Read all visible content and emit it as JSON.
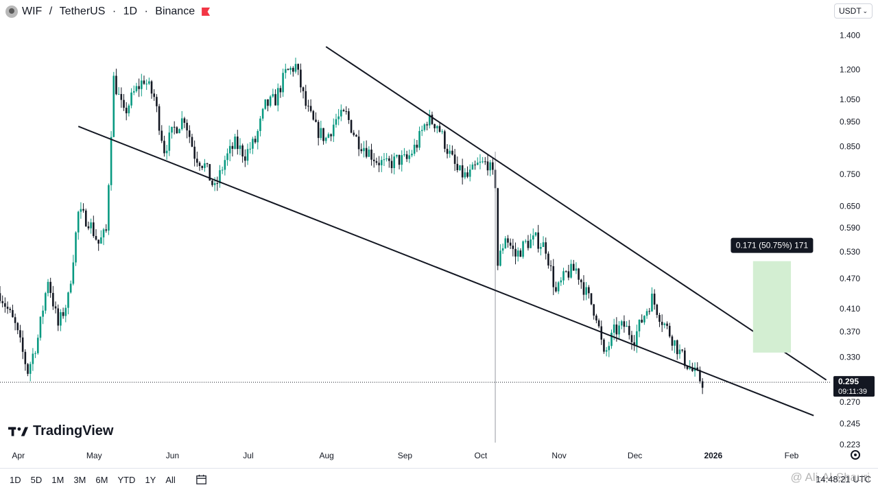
{
  "header": {
    "symbol": "WIF",
    "quote": "TetherUS",
    "interval": "1D",
    "exchange": "Binance",
    "title_sep": " / ",
    "dot": " · "
  },
  "currency_selector": {
    "value": "USDT"
  },
  "chart_data": {
    "type": "candlestick",
    "title": "WIF / TetherUS · 1D · Binance",
    "y_scale": "log",
    "ylim": [
      0.223,
      1.45
    ],
    "y_ticks": [
      "1.400",
      "1.200",
      "1.050",
      "0.950",
      "0.850",
      "0.750",
      "0.650",
      "0.590",
      "0.530",
      "0.470",
      "0.410",
      "0.370",
      "0.330",
      "0.270",
      "0.245",
      "0.223"
    ],
    "x_ticks": [
      "Apr",
      "May",
      "Jun",
      "Jul",
      "Aug",
      "Sep",
      "Oct",
      "Nov",
      "Dec",
      "2026",
      "Feb"
    ],
    "x_range": [
      "2025-03-28",
      "2026-02-20"
    ],
    "current_price": {
      "value": "0.295",
      "countdown": "09:11:39",
      "color": "#131722"
    },
    "up_color": "#089981",
    "down_color": "#131722",
    "price_path": [
      [
        "2025-03-28",
        0.44
      ],
      [
        "2025-04-03",
        0.38
      ],
      [
        "2025-04-08",
        0.31
      ],
      [
        "2025-04-12",
        0.36
      ],
      [
        "2025-04-16",
        0.47
      ],
      [
        "2025-04-20",
        0.38
      ],
      [
        "2025-04-24",
        0.43
      ],
      [
        "2025-04-28",
        0.63
      ],
      [
        "2025-05-02",
        0.61
      ],
      [
        "2025-05-06",
        0.55
      ],
      [
        "2025-05-09",
        0.58
      ],
      [
        "2025-05-12",
        1.15
      ],
      [
        "2025-05-16",
        0.98
      ],
      [
        "2025-05-20",
        1.08
      ],
      [
        "2025-05-24",
        1.15
      ],
      [
        "2025-05-28",
        1.06
      ],
      [
        "2025-06-01",
        0.84
      ],
      [
        "2025-06-05",
        0.92
      ],
      [
        "2025-06-09",
        0.97
      ],
      [
        "2025-06-13",
        0.82
      ],
      [
        "2025-06-17",
        0.78
      ],
      [
        "2025-06-21",
        0.7
      ],
      [
        "2025-06-25",
        0.8
      ],
      [
        "2025-06-29",
        0.86
      ],
      [
        "2025-07-03",
        0.82
      ],
      [
        "2025-07-07",
        0.87
      ],
      [
        "2025-07-11",
        1.02
      ],
      [
        "2025-07-15",
        1.05
      ],
      [
        "2025-07-19",
        1.18
      ],
      [
        "2025-07-23",
        1.22
      ],
      [
        "2025-07-27",
        1.02
      ],
      [
        "2025-07-31",
        0.92
      ],
      [
        "2025-08-04",
        0.88
      ],
      [
        "2025-08-08",
        0.96
      ],
      [
        "2025-08-12",
        0.98
      ],
      [
        "2025-08-16",
        0.88
      ],
      [
        "2025-08-20",
        0.84
      ],
      [
        "2025-08-24",
        0.8
      ],
      [
        "2025-08-28",
        0.78
      ],
      [
        "2025-09-01",
        0.8
      ],
      [
        "2025-09-05",
        0.8
      ],
      [
        "2025-09-09",
        0.86
      ],
      [
        "2025-09-13",
        0.96
      ],
      [
        "2025-09-17",
        0.94
      ],
      [
        "2025-09-21",
        0.84
      ],
      [
        "2025-09-25",
        0.76
      ],
      [
        "2025-09-29",
        0.74
      ],
      [
        "2025-10-03",
        0.78
      ],
      [
        "2025-10-07",
        0.79
      ],
      [
        "2025-10-10",
        0.72
      ],
      [
        "2025-10-11",
        0.5
      ],
      [
        "2025-10-14",
        0.57
      ],
      [
        "2025-10-18",
        0.52
      ],
      [
        "2025-10-22",
        0.55
      ],
      [
        "2025-10-26",
        0.56
      ],
      [
        "2025-10-30",
        0.54
      ],
      [
        "2025-11-03",
        0.44
      ],
      [
        "2025-11-07",
        0.48
      ],
      [
        "2025-11-11",
        0.49
      ],
      [
        "2025-11-15",
        0.44
      ],
      [
        "2025-11-19",
        0.4
      ],
      [
        "2025-11-22",
        0.33
      ],
      [
        "2025-11-26",
        0.37
      ],
      [
        "2025-11-30",
        0.38
      ],
      [
        "2025-12-04",
        0.36
      ],
      [
        "2025-12-08",
        0.4
      ],
      [
        "2025-12-11",
        0.43
      ],
      [
        "2025-12-15",
        0.39
      ],
      [
        "2025-12-19",
        0.36
      ],
      [
        "2025-12-23",
        0.33
      ],
      [
        "2025-12-27",
        0.31
      ],
      [
        "2025-12-31",
        0.295
      ]
    ],
    "annotations": {
      "upper_trendline": [
        [
          "2025-08-04",
          1.33
        ],
        [
          "2026-02-18",
          0.298
        ]
      ],
      "lower_trendline": [
        [
          "2025-04-28",
          0.93
        ],
        [
          "2026-02-13",
          0.254
        ]
      ],
      "vertical_marker": {
        "date": "2025-10-10",
        "from": 0.83,
        "to": 0.225
      },
      "target_box": {
        "from_date": "2026-01-20",
        "to_date": "2026-02-04",
        "low": 0.337,
        "high": 0.508,
        "fill": "#d3eed2",
        "label": "0.171 (50.75%) 171"
      }
    }
  },
  "branding": {
    "logo_text": "TradingView"
  },
  "bottom_bar": {
    "timeframes": [
      "1D",
      "5D",
      "1M",
      "3M",
      "6M",
      "YTD",
      "1Y",
      "All"
    ],
    "clock": "14:48:21 UTC"
  },
  "watermark": {
    "text": "@ Ali-Al-Shauri"
  }
}
